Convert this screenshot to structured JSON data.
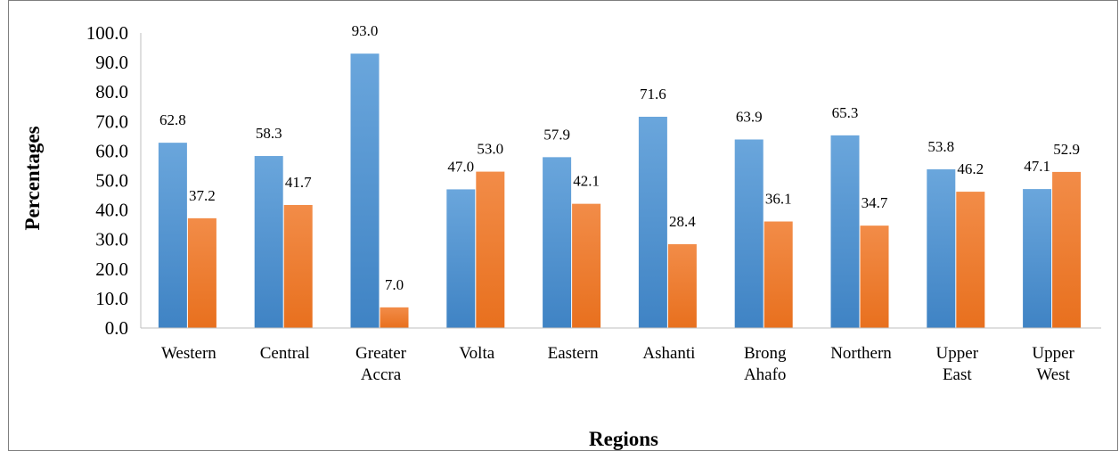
{
  "chart_data": {
    "type": "bar",
    "title": "",
    "xlabel": "Regions",
    "ylabel": "Percentages",
    "ylim": [
      0,
      100
    ],
    "yticks": [
      "0.0",
      "10.0",
      "20.0",
      "30.0",
      "40.0",
      "50.0",
      "60.0",
      "70.0",
      "80.0",
      "90.0",
      "100.0"
    ],
    "grid": false,
    "legend": "none",
    "categories": [
      [
        "Western"
      ],
      [
        "Central"
      ],
      [
        "Greater",
        "Accra"
      ],
      [
        "Volta"
      ],
      [
        "Eastern"
      ],
      [
        "Ashanti"
      ],
      [
        "Brong",
        "Ahafo"
      ],
      [
        "Northern"
      ],
      [
        "Upper",
        "East"
      ],
      [
        "Upper",
        "West"
      ]
    ],
    "series": [
      {
        "color": "#5b9bd5",
        "values": [
          62.8,
          58.3,
          93.0,
          47.0,
          57.9,
          71.6,
          63.9,
          65.3,
          53.8,
          47.1
        ],
        "labels": [
          "62.8",
          "58.3",
          "93.0",
          "47.0",
          "57.9",
          "71.6",
          "63.9",
          "65.3",
          "53.8",
          "47.1"
        ]
      },
      {
        "color": "#ed7d31",
        "values": [
          37.2,
          41.7,
          7.0,
          53.0,
          42.1,
          28.4,
          36.1,
          34.7,
          46.2,
          52.9
        ],
        "labels": [
          "37.2",
          "41.7",
          "7.0",
          "53.0",
          "42.1",
          "28.4",
          "36.1",
          "34.7",
          "46.2",
          "52.9"
        ]
      }
    ]
  }
}
